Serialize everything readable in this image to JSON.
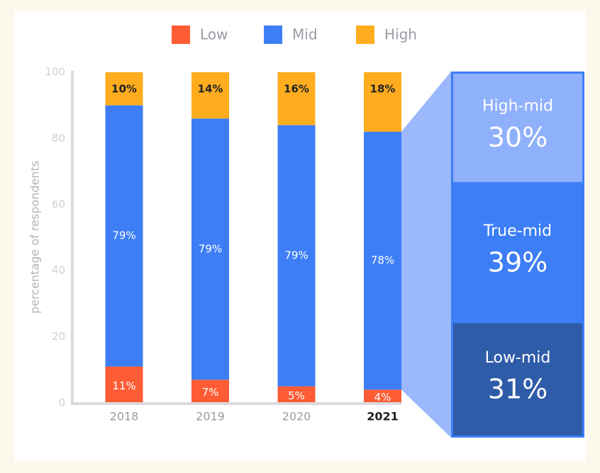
{
  "chart_data": {
    "type": "bar",
    "stacked": true,
    "ylabel": "percentage of respondents",
    "categories": [
      "2018",
      "2019",
      "2020",
      "2021"
    ],
    "highlight_index": 3,
    "series": [
      {
        "name": "Low",
        "color": "#ff5c35",
        "values": [
          11,
          7,
          5,
          4
        ],
        "value_labels": [
          "11%",
          "7%",
          "5%",
          "4%"
        ]
      },
      {
        "name": "Mid",
        "color": "#3d7ef6",
        "values": [
          79,
          79,
          79,
          78
        ],
        "value_labels": [
          "79%",
          "79%",
          "79%",
          "78%"
        ]
      },
      {
        "name": "High",
        "color": "#ffad1f",
        "values": [
          10,
          14,
          16,
          18
        ],
        "value_labels": [
          "10%",
          "14%",
          "16%",
          "18%"
        ]
      }
    ],
    "ylim": [
      0,
      100
    ],
    "yticks": [
      0,
      20,
      40,
      60,
      80,
      100
    ],
    "legend": "top",
    "breakdown": [
      {
        "label": "High-mid",
        "value": 30,
        "value_label": "30%",
        "color": "#8fb0fb"
      },
      {
        "label": "True-mid",
        "value": 39,
        "value_label": "39%",
        "color": "#3d7ef6"
      },
      {
        "label": "Low-mid",
        "value": 31,
        "value_label": "31%",
        "color": "#2f5ca8"
      }
    ]
  }
}
